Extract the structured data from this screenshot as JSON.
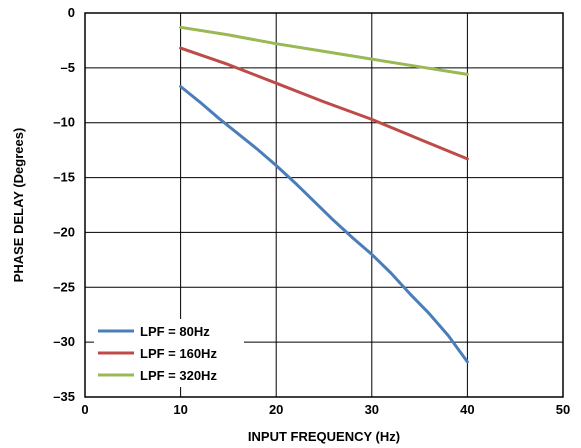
{
  "chart_data": {
    "type": "line",
    "title": "",
    "xlabel": "INPUT FREQUENCY (Hz)",
    "ylabel": "PHASE DELAY (Degrees)",
    "xlim": [
      0,
      50
    ],
    "ylim": [
      -35,
      0
    ],
    "xticks": [
      0,
      10,
      20,
      30,
      40,
      50
    ],
    "yticks": [
      0,
      -5,
      -10,
      -15,
      -20,
      -25,
      -30,
      -35
    ],
    "ytick_labels": [
      "0",
      "–5",
      "–10",
      "–15",
      "–20",
      "–25",
      "–30",
      "–35"
    ],
    "grid": true,
    "legend_position": "bottom-left",
    "series": [
      {
        "name": "LPF = 80Hz",
        "color": "#4a7ebb",
        "x": [
          10,
          12,
          14,
          16,
          18,
          20,
          22,
          24,
          26,
          28,
          30,
          32,
          34,
          36,
          38,
          40
        ],
        "y": [
          -6.7,
          -8.1,
          -9.6,
          -11.0,
          -12.4,
          -13.9,
          -15.5,
          -17.2,
          -18.9,
          -20.5,
          -22.0,
          -23.7,
          -25.6,
          -27.4,
          -29.4,
          -31.8
        ]
      },
      {
        "name": "LPF = 160Hz",
        "color": "#be4b48",
        "x": [
          10,
          15,
          20,
          25,
          30,
          35,
          40
        ],
        "y": [
          -3.2,
          -4.7,
          -6.4,
          -8.1,
          -9.7,
          -11.5,
          -13.3
        ]
      },
      {
        "name": "LPF = 320Hz",
        "color": "#98b954",
        "x": [
          10,
          15,
          20,
          25,
          30,
          35,
          40
        ],
        "y": [
          -1.3,
          -2.0,
          -2.8,
          -3.5,
          -4.2,
          -4.9,
          -5.6
        ]
      }
    ]
  }
}
